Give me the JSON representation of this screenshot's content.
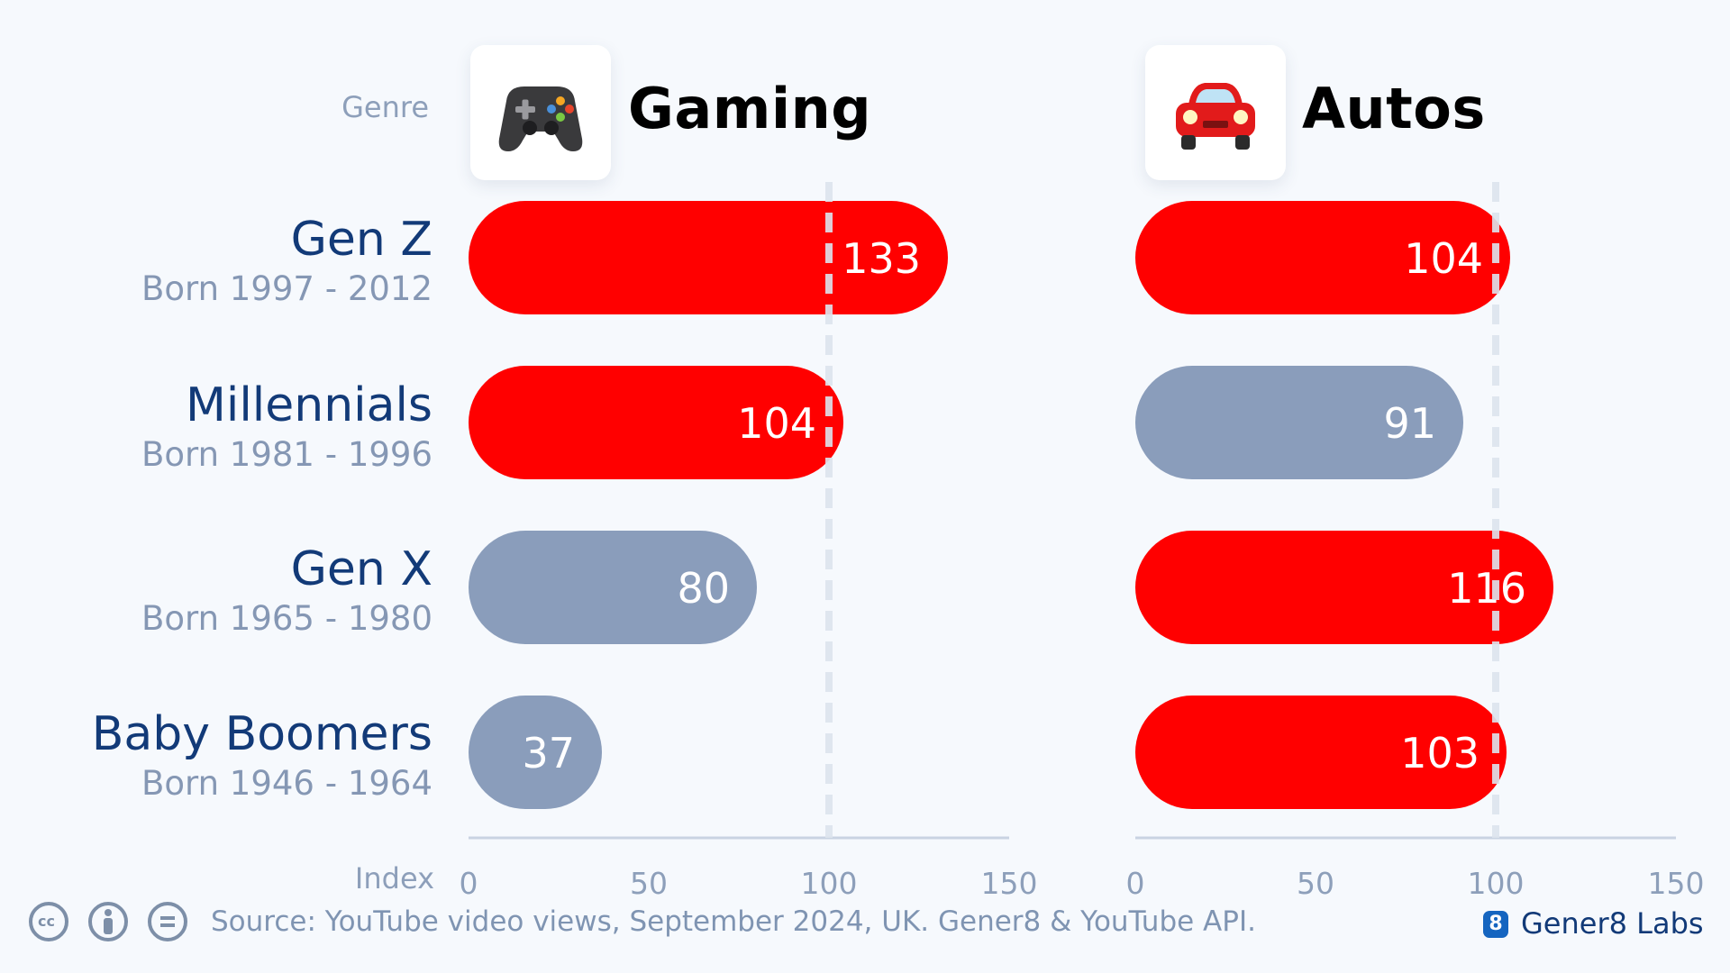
{
  "genre_label": "Genre",
  "axis_name": "Index",
  "rows": [
    {
      "name": "Gen Z",
      "born": "Born 1997 - 2012"
    },
    {
      "name": "Millennials",
      "born": "Born 1981 - 1996"
    },
    {
      "name": "Gen X",
      "born": "Born 1965 - 1980"
    },
    {
      "name": "Baby Boomers",
      "born": "Born 1946 - 1964"
    }
  ],
  "source": "Source: YouTube video views, September 2024, UK. Gener8 & YouTube API.",
  "brand": {
    "mark": "8",
    "name": "Gener8 Labs"
  },
  "colors": {
    "above_benchmark": "#ff0000",
    "below_benchmark": "#8a9dbb",
    "text_dark": "#123a78"
  },
  "chart_data": [
    {
      "type": "bar",
      "title": "Gaming",
      "icon": "game-controller-icon",
      "categories": [
        "Gen Z",
        "Millennials",
        "Gen X",
        "Baby Boomers"
      ],
      "values": [
        133,
        104,
        80,
        37
      ],
      "xlim": [
        0,
        150
      ],
      "xticks": [
        0,
        50,
        100,
        150
      ],
      "reference_line": 100,
      "orientation": "horizontal"
    },
    {
      "type": "bar",
      "title": "Autos",
      "icon": "car-icon",
      "categories": [
        "Gen Z",
        "Millennials",
        "Gen X",
        "Baby Boomers"
      ],
      "values": [
        104,
        91,
        116,
        103
      ],
      "xlim": [
        0,
        150
      ],
      "xticks": [
        0,
        50,
        100,
        150
      ],
      "reference_line": 100,
      "orientation": "horizontal"
    }
  ]
}
